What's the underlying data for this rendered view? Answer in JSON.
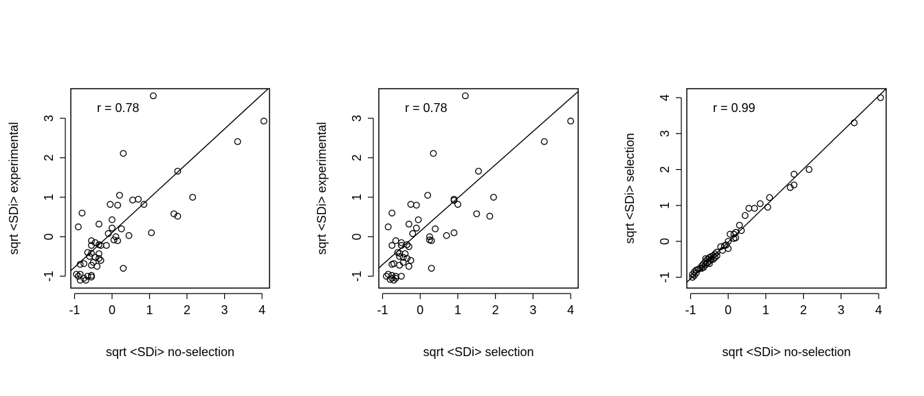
{
  "chart_data": [
    {
      "type": "scatter",
      "xlabel": "sqrt <SDi> no-selection",
      "ylabel": "sqrt <SDi> experimental",
      "annotation": "r =  0.78",
      "xlim": [
        -1.1,
        4.2
      ],
      "ylim": [
        -1.3,
        3.75
      ],
      "xticks": [
        -1,
        0,
        1,
        2,
        3,
        4
      ],
      "yticks": [
        -1,
        0,
        1,
        2,
        3
      ],
      "fit_line": [
        [
          -1.1,
          -0.86
        ],
        [
          4.2,
          3.78
        ]
      ],
      "points": [
        [
          1.1,
          3.57
        ],
        [
          4.05,
          2.93
        ],
        [
          3.35,
          2.41
        ],
        [
          0.3,
          2.11
        ],
        [
          1.75,
          1.66
        ],
        [
          2.15,
          1.0
        ],
        [
          0.2,
          1.05
        ],
        [
          0.7,
          0.95
        ],
        [
          0.55,
          0.93
        ],
        [
          0.85,
          0.82
        ],
        [
          -0.05,
          0.82
        ],
        [
          0.15,
          0.8
        ],
        [
          1.65,
          0.58
        ],
        [
          1.75,
          0.52
        ],
        [
          -0.8,
          0.6
        ],
        [
          0.0,
          0.43
        ],
        [
          -0.35,
          0.32
        ],
        [
          -0.9,
          0.25
        ],
        [
          0.0,
          0.22
        ],
        [
          0.25,
          0.2
        ],
        [
          1.05,
          0.1
        ],
        [
          0.45,
          0.03
        ],
        [
          -0.1,
          0.08
        ],
        [
          0.1,
          0.0
        ],
        [
          0.05,
          -0.08
        ],
        [
          0.15,
          -0.1
        ],
        [
          -0.55,
          -0.1
        ],
        [
          -0.45,
          -0.15
        ],
        [
          -0.35,
          -0.2
        ],
        [
          -0.55,
          -0.22
        ],
        [
          -0.3,
          -0.22
        ],
        [
          -0.15,
          -0.22
        ],
        [
          -0.65,
          -0.4
        ],
        [
          -0.55,
          -0.42
        ],
        [
          -0.35,
          -0.43
        ],
        [
          -0.6,
          -0.5
        ],
        [
          -0.45,
          -0.52
        ],
        [
          -0.35,
          -0.55
        ],
        [
          -0.3,
          -0.6
        ],
        [
          -0.5,
          -0.65
        ],
        [
          -0.75,
          -0.68
        ],
        [
          -0.85,
          -0.7
        ],
        [
          -0.55,
          -0.72
        ],
        [
          -0.4,
          -0.75
        ],
        [
          0.3,
          -0.8
        ],
        [
          -0.95,
          -0.95
        ],
        [
          -0.85,
          -0.95
        ],
        [
          -0.55,
          -0.98
        ],
        [
          -0.9,
          -1.0
        ],
        [
          -0.65,
          -1.0
        ],
        [
          -0.55,
          -1.02
        ],
        [
          -0.75,
          -1.05
        ],
        [
          -0.7,
          -1.1
        ],
        [
          -0.85,
          -1.1
        ]
      ]
    },
    {
      "type": "scatter",
      "xlabel": "sqrt <SDi> selection",
      "ylabel": "sqrt <SDi> experimental",
      "annotation": "r =  0.78",
      "xlim": [
        -1.1,
        4.2
      ],
      "ylim": [
        -1.3,
        3.75
      ],
      "xticks": [
        -1,
        0,
        1,
        2,
        3,
        4
      ],
      "yticks": [
        -1,
        0,
        1,
        2,
        3
      ],
      "fit_line": [
        [
          -1.1,
          -0.79
        ],
        [
          4.2,
          3.68
        ]
      ],
      "points": [
        [
          1.2,
          3.57
        ],
        [
          4.0,
          2.93
        ],
        [
          3.3,
          2.41
        ],
        [
          0.35,
          2.11
        ],
        [
          1.55,
          1.66
        ],
        [
          1.95,
          1.0
        ],
        [
          0.2,
          1.05
        ],
        [
          0.9,
          0.95
        ],
        [
          0.9,
          0.92
        ],
        [
          1.0,
          0.82
        ],
        [
          -0.25,
          0.82
        ],
        [
          -0.1,
          0.8
        ],
        [
          1.5,
          0.58
        ],
        [
          1.85,
          0.52
        ],
        [
          -0.75,
          0.6
        ],
        [
          -0.05,
          0.43
        ],
        [
          -0.3,
          0.32
        ],
        [
          -0.85,
          0.25
        ],
        [
          -0.1,
          0.22
        ],
        [
          0.4,
          0.2
        ],
        [
          0.9,
          0.1
        ],
        [
          0.7,
          0.03
        ],
        [
          -0.2,
          0.08
        ],
        [
          0.25,
          0.0
        ],
        [
          0.25,
          -0.08
        ],
        [
          0.3,
          -0.1
        ],
        [
          -0.65,
          -0.1
        ],
        [
          -0.5,
          -0.15
        ],
        [
          -0.35,
          -0.2
        ],
        [
          -0.75,
          -0.22
        ],
        [
          -0.5,
          -0.22
        ],
        [
          -0.3,
          -0.25
        ],
        [
          -0.6,
          -0.4
        ],
        [
          -0.55,
          -0.42
        ],
        [
          -0.4,
          -0.43
        ],
        [
          -0.55,
          -0.5
        ],
        [
          -0.45,
          -0.52
        ],
        [
          -0.35,
          -0.55
        ],
        [
          -0.25,
          -0.6
        ],
        [
          -0.45,
          -0.65
        ],
        [
          -0.7,
          -0.68
        ],
        [
          -0.75,
          -0.7
        ],
        [
          -0.55,
          -0.72
        ],
        [
          -0.3,
          -0.75
        ],
        [
          0.3,
          -0.8
        ],
        [
          -0.85,
          -0.95
        ],
        [
          -0.75,
          -0.98
        ],
        [
          -0.65,
          -1.0
        ],
        [
          -0.9,
          -1.0
        ],
        [
          -0.5,
          -1.0
        ],
        [
          -0.65,
          -1.05
        ],
        [
          -0.8,
          -1.08
        ],
        [
          -0.7,
          -1.1
        ],
        [
          -0.75,
          -1.05
        ]
      ]
    },
    {
      "type": "scatter",
      "xlabel": "sqrt <SDi> no-selection",
      "ylabel": "sqrt <SDi> selection",
      "annotation": "r =  0.99",
      "xlim": [
        -1.1,
        4.2
      ],
      "ylim": [
        -1.3,
        4.25
      ],
      "xticks": [
        -1,
        0,
        1,
        2,
        3,
        4
      ],
      "yticks": [
        -1,
        0,
        1,
        2,
        3,
        4
      ],
      "fit_line": [
        [
          -1.1,
          -1.14
        ],
        [
          4.2,
          4.25
        ]
      ],
      "points": [
        [
          4.05,
          4.0
        ],
        [
          3.35,
          3.3
        ],
        [
          2.15,
          2.0
        ],
        [
          1.75,
          1.87
        ],
        [
          1.75,
          1.57
        ],
        [
          1.65,
          1.5
        ],
        [
          1.1,
          1.22
        ],
        [
          1.05,
          0.95
        ],
        [
          0.85,
          1.05
        ],
        [
          0.7,
          0.92
        ],
        [
          0.55,
          0.92
        ],
        [
          0.45,
          0.72
        ],
        [
          0.3,
          0.45
        ],
        [
          0.35,
          0.3
        ],
        [
          0.2,
          0.25
        ],
        [
          0.15,
          0.2
        ],
        [
          0.2,
          0.1
        ],
        [
          0.05,
          0.2
        ],
        [
          0.15,
          0.08
        ],
        [
          0.0,
          0.0
        ],
        [
          -0.05,
          -0.1
        ],
        [
          0.0,
          -0.2
        ],
        [
          -0.1,
          -0.12
        ],
        [
          -0.2,
          -0.15
        ],
        [
          -0.15,
          -0.25
        ],
        [
          -0.3,
          -0.3
        ],
        [
          -0.35,
          -0.35
        ],
        [
          -0.3,
          -0.4
        ],
        [
          -0.35,
          -0.45
        ],
        [
          -0.4,
          -0.4
        ],
        [
          -0.45,
          -0.42
        ],
        [
          -0.45,
          -0.5
        ],
        [
          -0.5,
          -0.45
        ],
        [
          -0.5,
          -0.55
        ],
        [
          -0.55,
          -0.5
        ],
        [
          -0.55,
          -0.6
        ],
        [
          -0.6,
          -0.55
        ],
        [
          -0.6,
          -0.65
        ],
        [
          -0.65,
          -0.62
        ],
        [
          -0.65,
          -0.72
        ],
        [
          -0.7,
          -0.68
        ],
        [
          -0.75,
          -0.75
        ],
        [
          -0.8,
          -0.78
        ],
        [
          -0.85,
          -0.8
        ],
        [
          -0.85,
          -0.88
        ],
        [
          -0.9,
          -0.85
        ],
        [
          -0.9,
          -0.95
        ],
        [
          -0.95,
          -0.92
        ],
        [
          -0.95,
          -1.0
        ],
        [
          -0.55,
          -0.58
        ],
        [
          -0.4,
          -0.5
        ],
        [
          -0.5,
          -0.62
        ],
        [
          -0.7,
          -0.75
        ],
        [
          -0.6,
          -0.48
        ]
      ]
    }
  ]
}
